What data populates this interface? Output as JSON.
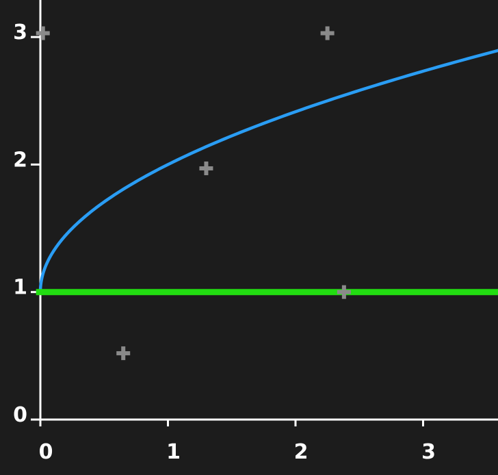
{
  "chart_data": {
    "type": "line",
    "title": "",
    "xlabel": "",
    "ylabel": "",
    "xlim": [
      -0.05,
      3.6
    ],
    "ylim": [
      -0.05,
      3.2
    ],
    "x_ticks": [
      0,
      1,
      2,
      3
    ],
    "y_ticks": [
      0,
      1,
      2,
      3
    ],
    "grid": false,
    "legend": "none",
    "series": [
      {
        "kind": "curve",
        "function": "y = 1 + sqrt(x)",
        "color": "#2a9df4",
        "x": [
          0,
          0.01,
          0.05,
          0.1,
          0.2,
          0.3,
          0.5,
          0.75,
          1.0,
          1.25,
          1.5,
          2.0,
          2.5,
          3.0,
          3.6
        ],
        "y": [
          1.0,
          1.1,
          1.224,
          1.316,
          1.447,
          1.548,
          1.707,
          1.866,
          2.0,
          2.118,
          2.225,
          2.414,
          2.581,
          2.732,
          2.897
        ]
      },
      {
        "kind": "line",
        "color": "#22dd11",
        "x": [
          -0.05,
          3.6
        ],
        "y": [
          1,
          1
        ]
      },
      {
        "kind": "scatter",
        "marker": "plus",
        "color": "#8a8a8a",
        "x": [
          0.02,
          2.25,
          1.3,
          2.38,
          0.65
        ],
        "y": [
          3.03,
          3.03,
          1.97,
          1.0,
          0.52
        ]
      }
    ]
  }
}
